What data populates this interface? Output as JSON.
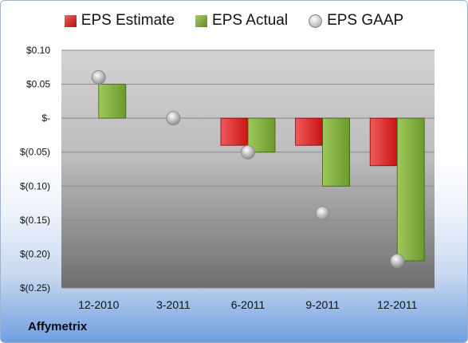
{
  "chart_data": {
    "type": "bar",
    "title": "",
    "xlabel": "",
    "ylabel": "",
    "categories": [
      "12-2010",
      "3-2011",
      "6-2011",
      "9-2011",
      "12-2011"
    ],
    "series": [
      {
        "name": "EPS Estimate",
        "type": "bar",
        "color": "#d81e1e",
        "values": [
          null,
          null,
          -0.04,
          -0.04,
          -0.07
        ]
      },
      {
        "name": "EPS Actual",
        "type": "bar",
        "color": "#7fae3a",
        "values": [
          0.05,
          null,
          -0.05,
          -0.1,
          -0.21
        ]
      },
      {
        "name": "EPS GAAP",
        "type": "scatter",
        "color": "#b8b8b8",
        "values": [
          0.06,
          0.0,
          -0.05,
          -0.14,
          -0.21
        ]
      }
    ],
    "ylim": [
      -0.25,
      0.1
    ],
    "yticks": [
      0.1,
      0.05,
      0.0,
      -0.05,
      -0.1,
      -0.15,
      -0.2,
      -0.25
    ],
    "ytick_labels": [
      "$0.10",
      "$0.05",
      "$-",
      "$(0.05)",
      "$(0.10)",
      "$(0.15)",
      "$(0.20)",
      "$(0.25)"
    ],
    "grid": true,
    "legend_position": "top",
    "legend": [
      "EPS Estimate",
      "EPS Actual",
      "EPS GAAP"
    ],
    "annotation": "Affymetrix"
  }
}
